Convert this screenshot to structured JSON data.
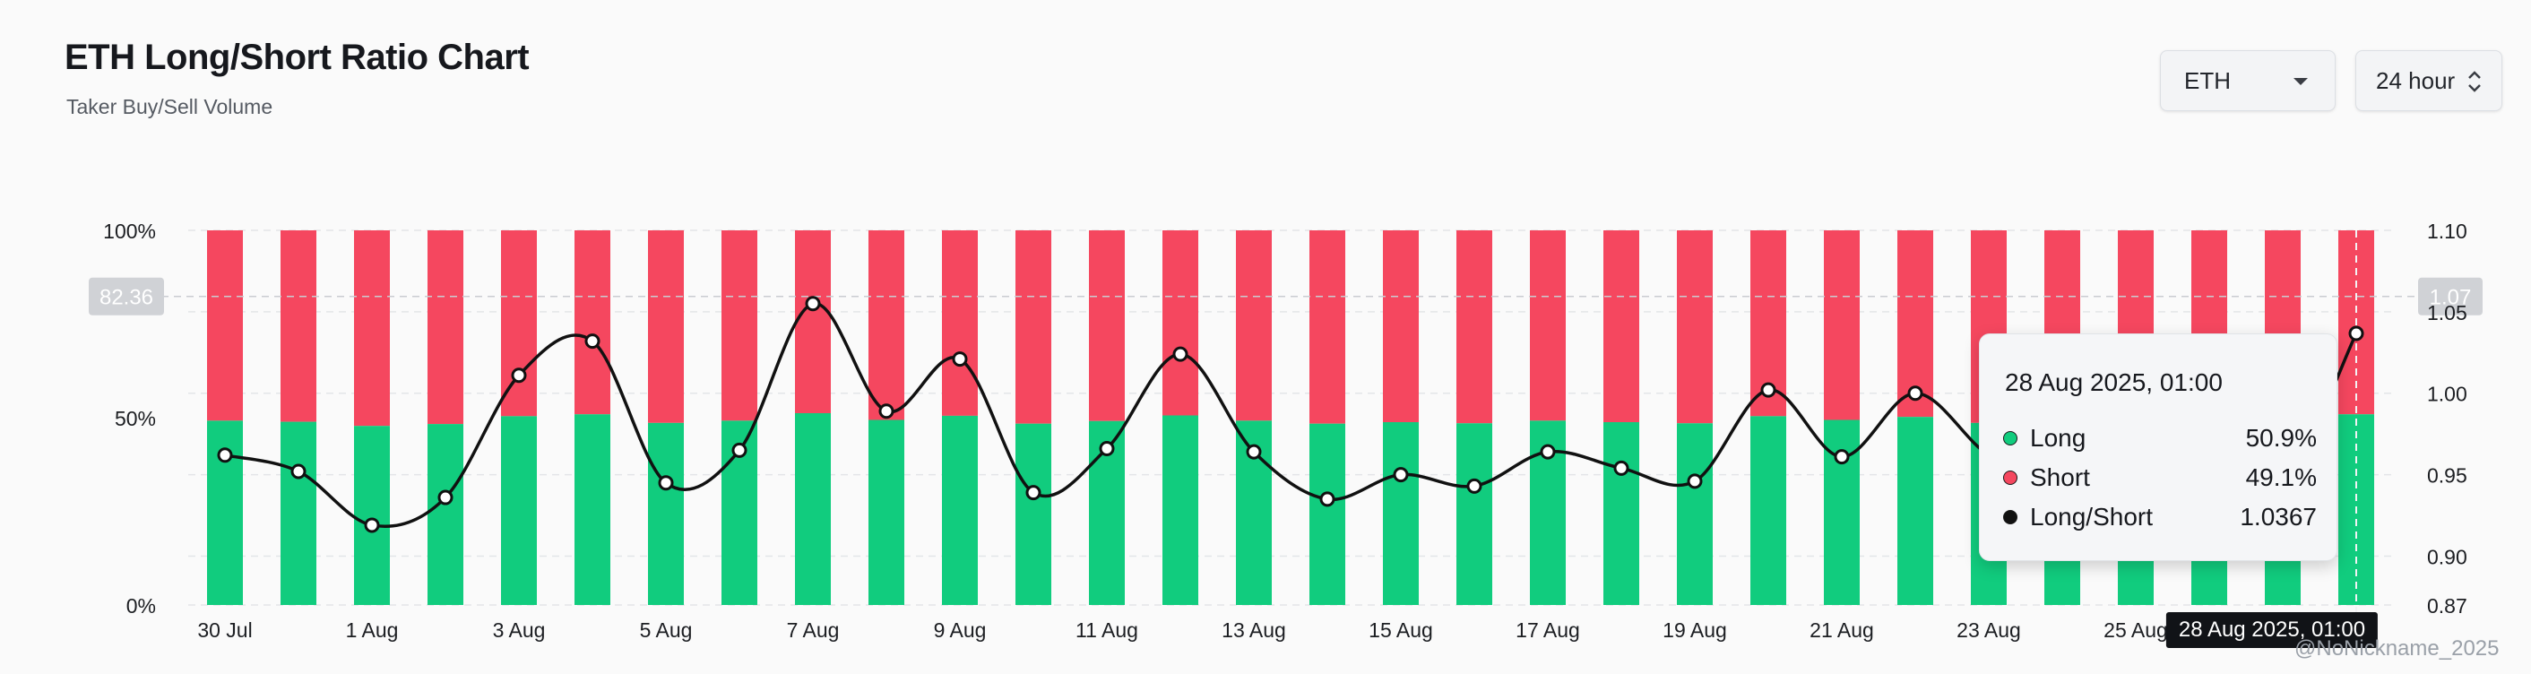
{
  "header": {
    "title": "ETH Long/Short Ratio Chart",
    "subtitle": "Taker Buy/Sell Volume"
  },
  "controls": {
    "asset": "ETH",
    "period": "24 hour"
  },
  "colors": {
    "long": "#11cc7e",
    "short": "#f5475f",
    "line": "#111111",
    "background": "#fafafa"
  },
  "chart_data": {
    "type": "bar",
    "stacked": true,
    "categories": [
      "30 Jul",
      "31 Jul",
      "1 Aug",
      "2 Aug",
      "3 Aug",
      "4 Aug",
      "5 Aug",
      "6 Aug",
      "7 Aug",
      "8 Aug",
      "9 Aug",
      "10 Aug",
      "11 Aug",
      "12 Aug",
      "13 Aug",
      "14 Aug",
      "15 Aug",
      "16 Aug",
      "17 Aug",
      "18 Aug",
      "19 Aug",
      "20 Aug",
      "21 Aug",
      "22 Aug",
      "23 Aug",
      "24 Aug",
      "25 Aug",
      "26 Aug",
      "27 Aug",
      "28 Aug"
    ],
    "x_tick_labels": [
      "30 Jul",
      "1 Aug",
      "3 Aug",
      "5 Aug",
      "7 Aug",
      "9 Aug",
      "11 Aug",
      "13 Aug",
      "15 Aug",
      "17 Aug",
      "19 Aug",
      "21 Aug",
      "23 Aug",
      "25 Aug"
    ],
    "series": [
      {
        "name": "Long",
        "axis": "left",
        "values": [
          49.2,
          48.9,
          47.8,
          48.3,
          50.4,
          50.9,
          48.6,
          49.2,
          51.2,
          49.4,
          50.5,
          48.4,
          49.1,
          50.6,
          49.2,
          48.4,
          48.8,
          48.5,
          49.2,
          48.8,
          48.5,
          50.4,
          49.4,
          50.2,
          48.6,
          48.4,
          49.0,
          48.8,
          48.6,
          50.9
        ]
      },
      {
        "name": "Short",
        "axis": "left",
        "values": [
          50.8,
          51.1,
          52.2,
          51.7,
          49.6,
          49.1,
          51.4,
          50.8,
          48.8,
          50.6,
          49.5,
          51.6,
          50.9,
          49.4,
          50.8,
          51.6,
          51.2,
          51.5,
          50.8,
          51.2,
          51.5,
          49.6,
          50.6,
          49.8,
          51.4,
          51.6,
          51.0,
          51.2,
          51.4,
          49.1
        ]
      },
      {
        "name": "Long/Short",
        "type": "line",
        "axis": "right",
        "values": [
          0.962,
          0.952,
          0.919,
          0.936,
          1.011,
          1.032,
          0.945,
          0.965,
          1.055,
          0.989,
          1.021,
          0.939,
          0.966,
          1.024,
          0.964,
          0.935,
          0.95,
          0.943,
          0.964,
          0.954,
          0.946,
          1.002,
          0.961,
          1.0,
          0.962,
          0.945,
          0.978,
          0.952,
          0.945,
          1.0367
        ]
      }
    ],
    "y_left": {
      "ticks": [
        "0%",
        "50%",
        "100%"
      ],
      "ylim": [
        0,
        100
      ]
    },
    "y_right": {
      "ticks": [
        "0.87",
        "0.90",
        "0.95",
        "1.00",
        "1.05",
        "1.10"
      ],
      "ylim": [
        0.87,
        1.1
      ]
    },
    "crosshair": {
      "left_label": "82.36",
      "right_label": "1.07",
      "x_label": "28 Aug 2025, 01:00",
      "index": 29
    },
    "grid": true
  },
  "tooltip": {
    "title": "28 Aug 2025, 01:00",
    "rows": [
      {
        "label": "Long",
        "value": "50.9%",
        "color": "#11cc7e"
      },
      {
        "label": "Short",
        "value": "49.1%",
        "color": "#f5475f"
      },
      {
        "label": "Long/Short",
        "value": "1.0367",
        "color": "#111111"
      }
    ]
  },
  "watermark": "@NoNickname_2025"
}
